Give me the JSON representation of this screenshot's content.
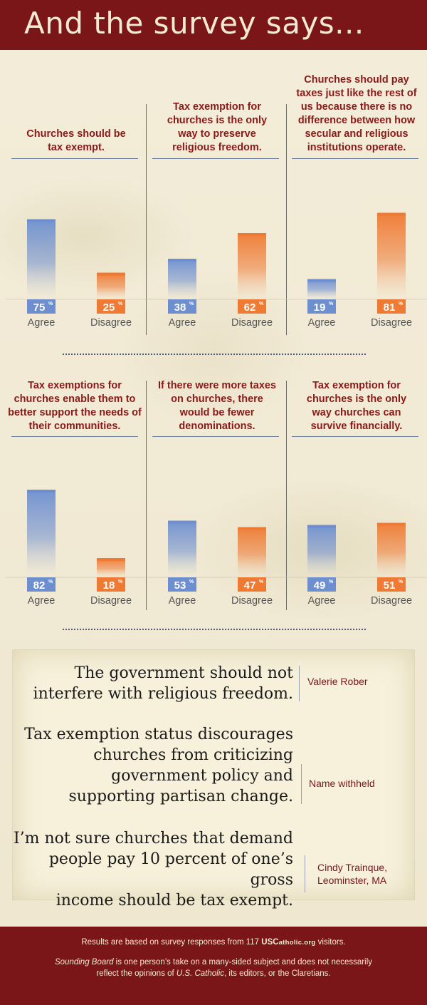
{
  "header": {
    "title": "And the survey says..."
  },
  "colors": {
    "agree": "#6d8fd0",
    "disagree": "#ef7a33",
    "question": "#8a1a1a",
    "banner": "#7a1518"
  },
  "chart_data": [
    {
      "type": "bar",
      "title": "Churches should be tax exempt.",
      "categories": [
        "Agree",
        "Disagree"
      ],
      "values": [
        75,
        25
      ],
      "unit": "%"
    },
    {
      "type": "bar",
      "title": "Tax exemption for churches is the only way to preserve religious freedom.",
      "categories": [
        "Agree",
        "Disagree"
      ],
      "values": [
        38,
        62
      ],
      "unit": "%"
    },
    {
      "type": "bar",
      "title": "Churches should pay taxes just like the rest of us because there is no difference between how secular and religious institutions operate.",
      "categories": [
        "Agree",
        "Disagree"
      ],
      "values": [
        19,
        81
      ],
      "unit": "%"
    },
    {
      "type": "bar",
      "title": "Tax exemptions for churches enable them to better support the needs of their communities.",
      "categories": [
        "Agree",
        "Disagree"
      ],
      "values": [
        82,
        18
      ],
      "unit": "%"
    },
    {
      "type": "bar",
      "title": "If there were more taxes on churches, there would be fewer denominations.",
      "categories": [
        "Agree",
        "Disagree"
      ],
      "values": [
        53,
        47
      ],
      "unit": "%"
    },
    {
      "type": "bar",
      "title": "Tax exemption for churches is the only way churches can survive financially.",
      "categories": [
        "Agree",
        "Disagree"
      ],
      "values": [
        49,
        51
      ],
      "unit": "%"
    }
  ],
  "quotes": [
    {
      "text": "The government should not\ninterfere with religious freedom.",
      "author": "Valerie Rober"
    },
    {
      "text": "Tax exemption status discourages\nchurches from criticizing\ngovernment policy and\nsupporting partisan change.",
      "author": "Name withheld"
    },
    {
      "text": "I’m not sure churches that demand\npeople pay 10 percent of one’s gross\nincome should be tax exempt.",
      "author": "Cindy Trainque,\nLeominster, MA"
    }
  ],
  "footer": {
    "line1_prefix": "Results are based on survey responses from 117 ",
    "site_us": "US",
    "site_c": "C",
    "site_rest": "atholic",
    "site_tld": ".org",
    "line1_suffix": " visitors.",
    "line2_italic": "Sounding Board",
    "line2_a": " is one person’s take on a many-sided subject and does not necessarily reflect the opinions of ",
    "line2_pub": "U.S. Catholic",
    "line2_b": ", its editors, or the Claretians."
  }
}
